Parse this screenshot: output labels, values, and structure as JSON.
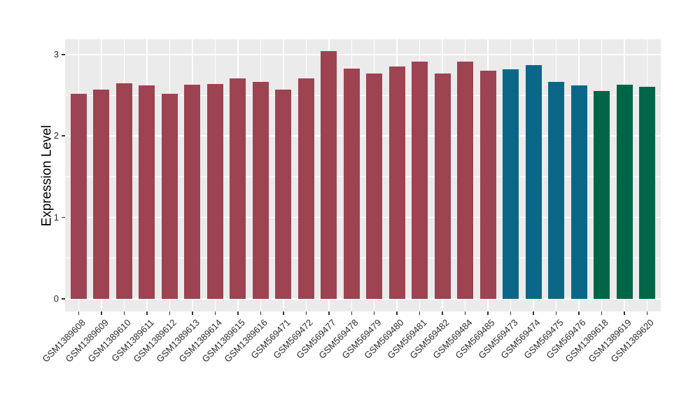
{
  "figure": {
    "background": "#FFFFFF",
    "panel_background": "#EBEBEB",
    "gridline_color": "#FFFFFF",
    "tick_mark_color": "#333333",
    "axis_text_color": "#2B2B2B",
    "axis_title_color": "#000000"
  },
  "chart_data": {
    "type": "bar",
    "title": "",
    "xlabel": "",
    "ylabel": "Expression Level",
    "legend": "none",
    "grid": "on",
    "bar_orientation": "vertical",
    "x_tick_rotation_deg": 45,
    "ylim": [
      0,
      3.19
    ],
    "y_major_ticks": [
      0,
      1,
      2,
      3
    ],
    "y_minor_gridlines": [
      0.5,
      1.5,
      2.5
    ],
    "categories": [
      "GSM1389608",
      "GSM1389609",
      "GSM1389610",
      "GSM1389611",
      "GSM1389612",
      "GSM1389613",
      "GSM1389614",
      "GSM1389615",
      "GSM1389616",
      "GSM569471",
      "GSM569472",
      "GSM569477",
      "GSM569478",
      "GSM569479",
      "GSM569480",
      "GSM569481",
      "GSM569482",
      "GSM569484",
      "GSM569485",
      "GSM569473",
      "GSM569474",
      "GSM569475",
      "GSM569476",
      "GSM1389618",
      "GSM1389619",
      "GSM1389620"
    ],
    "values": [
      2.52,
      2.57,
      2.65,
      2.62,
      2.52,
      2.63,
      2.64,
      2.71,
      2.66,
      2.57,
      2.71,
      3.04,
      2.83,
      2.77,
      2.85,
      2.91,
      2.77,
      2.91,
      2.8,
      2.82,
      2.87,
      2.66,
      2.62,
      2.55,
      2.63,
      2.6
    ],
    "groups": [
      "group1",
      "group1",
      "group1",
      "group1",
      "group1",
      "group1",
      "group1",
      "group1",
      "group1",
      "group1",
      "group1",
      "group1",
      "group1",
      "group1",
      "group1",
      "group1",
      "group1",
      "group1",
      "group1",
      "group2",
      "group2",
      "group2",
      "group2",
      "group3",
      "group3",
      "group3"
    ],
    "group_colors": {
      "group1": "#9D4352",
      "group2": "#0B6787",
      "group3": "#016647"
    }
  }
}
